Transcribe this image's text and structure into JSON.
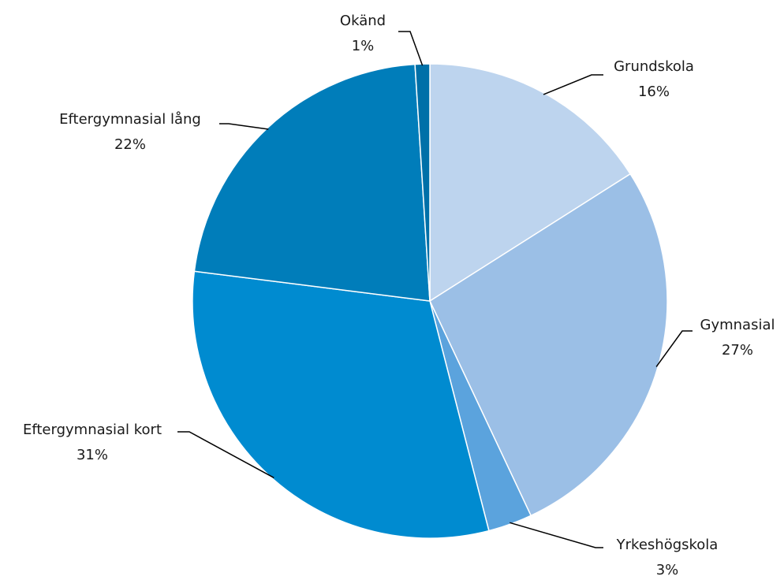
{
  "chart_data": {
    "type": "pie",
    "categories": [
      "Grundskola",
      "Gymnasial",
      "Yrkeshögskola",
      "Eftergymnasial kort",
      "Eftergymnasial lång",
      "Okänd"
    ],
    "values": [
      16,
      27,
      3,
      31,
      22,
      1
    ],
    "value_labels": [
      "16%",
      "27%",
      "3%",
      "31%",
      "22%",
      "1%"
    ],
    "colors": [
      "#bdd4ee",
      "#9bbfe6",
      "#5ba3dd",
      "#008bd0",
      "#007dba",
      "#0070a8"
    ]
  }
}
